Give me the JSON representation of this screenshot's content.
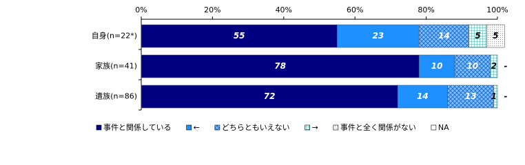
{
  "chart_data": {
    "type": "stacked-bar-horizontal",
    "categories": [
      "自身(n=22*)",
      "家族(n=41)",
      "遺族(n=86)"
    ],
    "series": [
      {
        "name": "事件と関係している",
        "color": "#000080",
        "values": [
          55,
          78,
          72
        ]
      },
      {
        "name": "←",
        "color": "#1e90ff",
        "values": [
          23,
          10,
          14
        ]
      },
      {
        "name": "どちらともいえない",
        "color": "#3a8fe0",
        "values": [
          14,
          10,
          13
        ]
      },
      {
        "name": "→",
        "color": "#66cccc",
        "values": [
          5,
          2,
          1
        ]
      },
      {
        "name": "事件と全く関係がない",
        "color": "#ffffff",
        "values": [
          5,
          0,
          0
        ],
        "value_labels": [
          "5",
          "-",
          "-"
        ]
      },
      {
        "name": "NA",
        "color": "#ffffff",
        "values": [
          null,
          null,
          null
        ]
      }
    ],
    "xlim": [
      0,
      100
    ],
    "xticks": [
      {
        "value": 0,
        "label": "0%"
      },
      {
        "value": 20,
        "label": "20%"
      },
      {
        "value": 40,
        "label": "40%"
      },
      {
        "value": 60,
        "label": "60%"
      },
      {
        "value": 80,
        "label": "80%"
      },
      {
        "value": 100,
        "label": "100%"
      }
    ]
  }
}
